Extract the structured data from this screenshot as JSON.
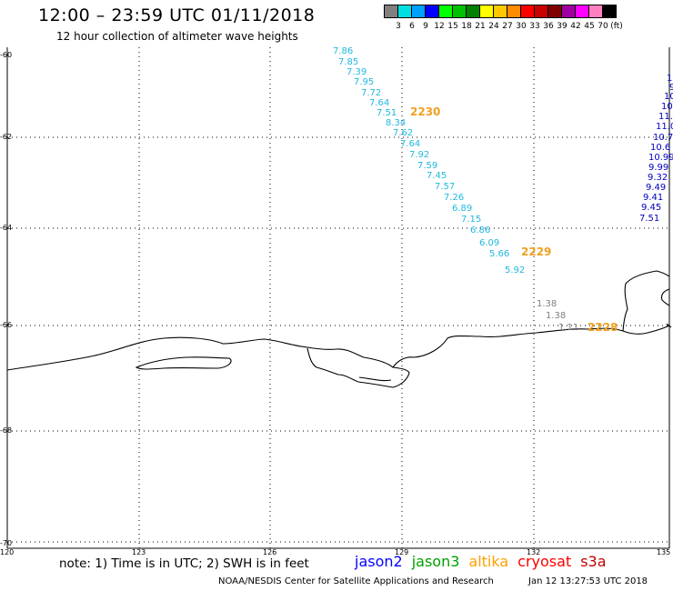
{
  "header": {
    "title": "12:00 – 23:59 UTC 01/11/2018",
    "subtitle": "12 hour collection of altimeter wave heights"
  },
  "legend_scale": {
    "colors": [
      "#808080",
      "#00e0e0",
      "#00a0ff",
      "#0000ff",
      "#00ff00",
      "#00c000",
      "#008000",
      "#ffff00",
      "#ffc800",
      "#ff8c00",
      "#ff0000",
      "#c80000",
      "#800000",
      "#a000a0",
      "#ff00ff",
      "#ff80c0",
      "#000000"
    ],
    "labels": [
      "3",
      "6",
      "9",
      "12",
      "15",
      "18",
      "21",
      "24",
      "27",
      "30",
      "33",
      "36",
      "39",
      "42",
      "45",
      "70",
      "(ft)"
    ]
  },
  "axes": {
    "lat_labels": [
      "-60",
      "-62",
      "-64",
      "-66",
      "-68",
      "-70"
    ],
    "lon_labels": [
      "120",
      "123",
      "126",
      "129",
      "132",
      "135"
    ]
  },
  "tracks": {
    "track1": {
      "color": "#20b8e0",
      "values": [
        "7.86",
        "7.85",
        "7.39",
        "7.95",
        "7.72",
        "7.64",
        "7.51",
        "8.34",
        "7.62",
        "7.64",
        "7.92",
        "7.59",
        "7.45",
        "7.57",
        "7.26",
        "6.89",
        "7.15",
        "6.86",
        "6.09",
        "5.66",
        "5.92"
      ],
      "times": [
        "2230",
        "2229"
      ]
    },
    "track2": {
      "color": "#0000c0",
      "values": [
        "1:",
        "9.",
        "10.",
        "10.",
        "11.",
        "11.0",
        "10.7",
        "10.6",
        "10.99",
        "9.99",
        "9.32",
        "9.49",
        "9.41",
        "9.45",
        "7.51"
      ]
    },
    "track3": {
      "color": "#808080",
      "values": [
        "1.38",
        "1.38",
        "1.11"
      ],
      "times": [
        "2228"
      ]
    }
  },
  "footer": {
    "note": "note: 1) Time is in UTC; 2) SWH is in feet",
    "satellites": [
      {
        "name": "jason2",
        "color": "#0000ff"
      },
      {
        "name": "jason3",
        "color": "#00a000"
      },
      {
        "name": "altika",
        "color": "#ffa000"
      },
      {
        "name": "cryosat",
        "color": "#ff0000"
      },
      {
        "name": "s3a",
        "color": "#c00000"
      }
    ],
    "credit": "NOAA/NESDIS Center for Satellite Applications and Research",
    "timestamp": "Jan 12 13:27:53 UTC 2018"
  }
}
